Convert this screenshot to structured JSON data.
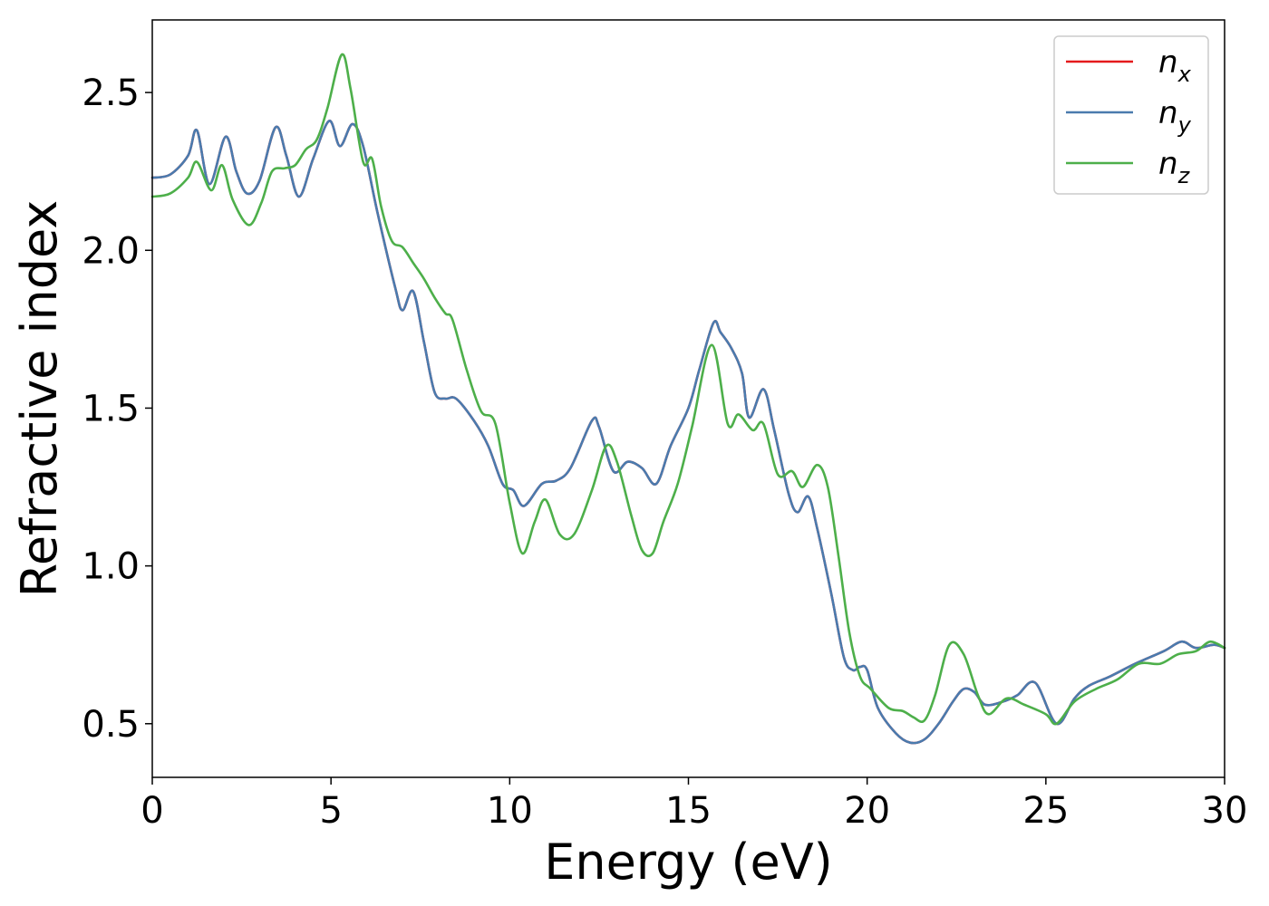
{
  "chart_data": {
    "type": "line",
    "title": "",
    "xlabel": "Energy (eV)",
    "ylabel": "Refractive index",
    "xlim": [
      0,
      30
    ],
    "ylim": [
      0.33,
      2.73
    ],
    "xticks": [
      0,
      5,
      10,
      15,
      20,
      25,
      30
    ],
    "xtick_labels": [
      "0",
      "5",
      "10",
      "15",
      "20",
      "25",
      "30"
    ],
    "yticks": [
      0.5,
      1.0,
      1.5,
      2.0,
      2.5
    ],
    "ytick_labels": [
      "0.5",
      "1.0",
      "1.5",
      "2.0",
      "2.5"
    ],
    "grid": false,
    "legend_position": "top-right",
    "series": [
      {
        "name": "n",
        "subscript": "x",
        "color": "#e41a1c",
        "points": [
          [
            0,
            2.23
          ],
          [
            0.5,
            2.24
          ],
          [
            1,
            2.3
          ],
          [
            1.25,
            2.38
          ],
          [
            1.6,
            2.21
          ],
          [
            2.05,
            2.36
          ],
          [
            2.35,
            2.25
          ],
          [
            2.65,
            2.18
          ],
          [
            3,
            2.22
          ],
          [
            3.45,
            2.39
          ],
          [
            3.75,
            2.3
          ],
          [
            4.1,
            2.17
          ],
          [
            4.5,
            2.29
          ],
          [
            4.95,
            2.41
          ],
          [
            5.25,
            2.33
          ],
          [
            5.6,
            2.4
          ],
          [
            5.9,
            2.33
          ],
          [
            6.3,
            2.12
          ],
          [
            6.8,
            1.88
          ],
          [
            7,
            1.81
          ],
          [
            7.3,
            1.87
          ],
          [
            7.6,
            1.71
          ],
          [
            7.9,
            1.55
          ],
          [
            8.2,
            1.53
          ],
          [
            8.5,
            1.53
          ],
          [
            9,
            1.46
          ],
          [
            9.4,
            1.38
          ],
          [
            9.8,
            1.26
          ],
          [
            10.1,
            1.24
          ],
          [
            10.4,
            1.19
          ],
          [
            10.9,
            1.26
          ],
          [
            11.3,
            1.27
          ],
          [
            11.7,
            1.31
          ],
          [
            12.3,
            1.46
          ],
          [
            12.5,
            1.44
          ],
          [
            12.9,
            1.3
          ],
          [
            13.3,
            1.33
          ],
          [
            13.7,
            1.31
          ],
          [
            14.1,
            1.26
          ],
          [
            14.5,
            1.38
          ],
          [
            15,
            1.5
          ],
          [
            15.3,
            1.62
          ],
          [
            15.7,
            1.77
          ],
          [
            15.9,
            1.74
          ],
          [
            16.2,
            1.69
          ],
          [
            16.5,
            1.61
          ],
          [
            16.7,
            1.47
          ],
          [
            17.1,
            1.56
          ],
          [
            17.4,
            1.43
          ],
          [
            17.8,
            1.23
          ],
          [
            18.05,
            1.17
          ],
          [
            18.35,
            1.22
          ],
          [
            18.6,
            1.12
          ],
          [
            19,
            0.91
          ],
          [
            19.35,
            0.71
          ],
          [
            19.6,
            0.67
          ],
          [
            19.8,
            0.68
          ],
          [
            20,
            0.67
          ],
          [
            20.3,
            0.55
          ],
          [
            20.8,
            0.47
          ],
          [
            21.2,
            0.44
          ],
          [
            21.6,
            0.45
          ],
          [
            22,
            0.5
          ],
          [
            22.4,
            0.57
          ],
          [
            22.7,
            0.61
          ],
          [
            23,
            0.6
          ],
          [
            23.3,
            0.56
          ],
          [
            23.8,
            0.57
          ],
          [
            24.2,
            0.59
          ],
          [
            24.7,
            0.63
          ],
          [
            25.3,
            0.5
          ],
          [
            25.8,
            0.58
          ],
          [
            26.2,
            0.62
          ],
          [
            26.8,
            0.65
          ],
          [
            27.5,
            0.69
          ],
          [
            28.3,
            0.73
          ],
          [
            28.8,
            0.76
          ],
          [
            29.2,
            0.74
          ],
          [
            29.7,
            0.75
          ],
          [
            30,
            0.74
          ]
        ]
      },
      {
        "name": "n",
        "subscript": "y",
        "color": "#4a7bae",
        "points": [
          [
            0,
            2.23
          ],
          [
            0.5,
            2.24
          ],
          [
            1,
            2.3
          ],
          [
            1.25,
            2.38
          ],
          [
            1.6,
            2.21
          ],
          [
            2.05,
            2.36
          ],
          [
            2.35,
            2.25
          ],
          [
            2.65,
            2.18
          ],
          [
            3,
            2.22
          ],
          [
            3.45,
            2.39
          ],
          [
            3.75,
            2.3
          ],
          [
            4.1,
            2.17
          ],
          [
            4.5,
            2.29
          ],
          [
            4.95,
            2.41
          ],
          [
            5.25,
            2.33
          ],
          [
            5.6,
            2.4
          ],
          [
            5.9,
            2.33
          ],
          [
            6.3,
            2.12
          ],
          [
            6.8,
            1.88
          ],
          [
            7,
            1.81
          ],
          [
            7.3,
            1.87
          ],
          [
            7.6,
            1.71
          ],
          [
            7.9,
            1.55
          ],
          [
            8.2,
            1.53
          ],
          [
            8.5,
            1.53
          ],
          [
            9,
            1.46
          ],
          [
            9.4,
            1.38
          ],
          [
            9.8,
            1.26
          ],
          [
            10.1,
            1.24
          ],
          [
            10.4,
            1.19
          ],
          [
            10.9,
            1.26
          ],
          [
            11.3,
            1.27
          ],
          [
            11.7,
            1.31
          ],
          [
            12.3,
            1.46
          ],
          [
            12.5,
            1.44
          ],
          [
            12.9,
            1.3
          ],
          [
            13.3,
            1.33
          ],
          [
            13.7,
            1.31
          ],
          [
            14.1,
            1.26
          ],
          [
            14.5,
            1.38
          ],
          [
            15,
            1.5
          ],
          [
            15.3,
            1.62
          ],
          [
            15.7,
            1.77
          ],
          [
            15.9,
            1.74
          ],
          [
            16.2,
            1.69
          ],
          [
            16.5,
            1.61
          ],
          [
            16.7,
            1.47
          ],
          [
            17.1,
            1.56
          ],
          [
            17.4,
            1.43
          ],
          [
            17.8,
            1.23
          ],
          [
            18.05,
            1.17
          ],
          [
            18.35,
            1.22
          ],
          [
            18.6,
            1.12
          ],
          [
            19,
            0.91
          ],
          [
            19.35,
            0.71
          ],
          [
            19.6,
            0.67
          ],
          [
            19.8,
            0.68
          ],
          [
            20,
            0.67
          ],
          [
            20.3,
            0.55
          ],
          [
            20.8,
            0.47
          ],
          [
            21.2,
            0.44
          ],
          [
            21.6,
            0.45
          ],
          [
            22,
            0.5
          ],
          [
            22.4,
            0.57
          ],
          [
            22.7,
            0.61
          ],
          [
            23,
            0.6
          ],
          [
            23.3,
            0.56
          ],
          [
            23.8,
            0.57
          ],
          [
            24.2,
            0.59
          ],
          [
            24.7,
            0.63
          ],
          [
            25.3,
            0.5
          ],
          [
            25.8,
            0.58
          ],
          [
            26.2,
            0.62
          ],
          [
            26.8,
            0.65
          ],
          [
            27.5,
            0.69
          ],
          [
            28.3,
            0.73
          ],
          [
            28.8,
            0.76
          ],
          [
            29.2,
            0.74
          ],
          [
            29.7,
            0.75
          ],
          [
            30,
            0.74
          ]
        ]
      },
      {
        "name": "n",
        "subscript": "z",
        "color": "#4daf4a",
        "points": [
          [
            0,
            2.17
          ],
          [
            0.5,
            2.18
          ],
          [
            1,
            2.23
          ],
          [
            1.25,
            2.28
          ],
          [
            1.65,
            2.19
          ],
          [
            1.95,
            2.27
          ],
          [
            2.25,
            2.16
          ],
          [
            2.7,
            2.08
          ],
          [
            3.05,
            2.15
          ],
          [
            3.35,
            2.25
          ],
          [
            3.7,
            2.26
          ],
          [
            4,
            2.27
          ],
          [
            4.3,
            2.32
          ],
          [
            4.6,
            2.35
          ],
          [
            4.9,
            2.45
          ],
          [
            5.3,
            2.62
          ],
          [
            5.55,
            2.51
          ],
          [
            5.9,
            2.28
          ],
          [
            6.15,
            2.29
          ],
          [
            6.4,
            2.14
          ],
          [
            6.7,
            2.03
          ],
          [
            7,
            2.01
          ],
          [
            7.3,
            1.96
          ],
          [
            7.6,
            1.91
          ],
          [
            7.9,
            1.85
          ],
          [
            8.2,
            1.8
          ],
          [
            8.4,
            1.78
          ],
          [
            8.8,
            1.62
          ],
          [
            9.2,
            1.49
          ],
          [
            9.6,
            1.45
          ],
          [
            10,
            1.2
          ],
          [
            10.35,
            1.04
          ],
          [
            10.7,
            1.14
          ],
          [
            11,
            1.21
          ],
          [
            11.4,
            1.1
          ],
          [
            11.8,
            1.1
          ],
          [
            12.3,
            1.24
          ],
          [
            12.7,
            1.38
          ],
          [
            13,
            1.33
          ],
          [
            13.4,
            1.16
          ],
          [
            13.7,
            1.05
          ],
          [
            14,
            1.04
          ],
          [
            14.3,
            1.14
          ],
          [
            14.7,
            1.26
          ],
          [
            15.1,
            1.44
          ],
          [
            15.65,
            1.7
          ],
          [
            16.1,
            1.45
          ],
          [
            16.4,
            1.48
          ],
          [
            16.8,
            1.43
          ],
          [
            17.1,
            1.45
          ],
          [
            17.5,
            1.29
          ],
          [
            17.9,
            1.3
          ],
          [
            18.2,
            1.25
          ],
          [
            18.6,
            1.32
          ],
          [
            18.9,
            1.25
          ],
          [
            19.2,
            1.03
          ],
          [
            19.5,
            0.79
          ],
          [
            19.8,
            0.65
          ],
          [
            20.1,
            0.61
          ],
          [
            20.6,
            0.55
          ],
          [
            21,
            0.54
          ],
          [
            21.3,
            0.52
          ],
          [
            21.6,
            0.51
          ],
          [
            21.9,
            0.59
          ],
          [
            22.3,
            0.75
          ],
          [
            22.7,
            0.72
          ],
          [
            23.1,
            0.59
          ],
          [
            23.4,
            0.53
          ],
          [
            23.9,
            0.58
          ],
          [
            24.4,
            0.56
          ],
          [
            25,
            0.53
          ],
          [
            25.3,
            0.5
          ],
          [
            25.8,
            0.57
          ],
          [
            26.4,
            0.61
          ],
          [
            27,
            0.64
          ],
          [
            27.6,
            0.69
          ],
          [
            28.2,
            0.69
          ],
          [
            28.7,
            0.72
          ],
          [
            29.2,
            0.73
          ],
          [
            29.6,
            0.76
          ],
          [
            30,
            0.74
          ]
        ]
      }
    ]
  }
}
